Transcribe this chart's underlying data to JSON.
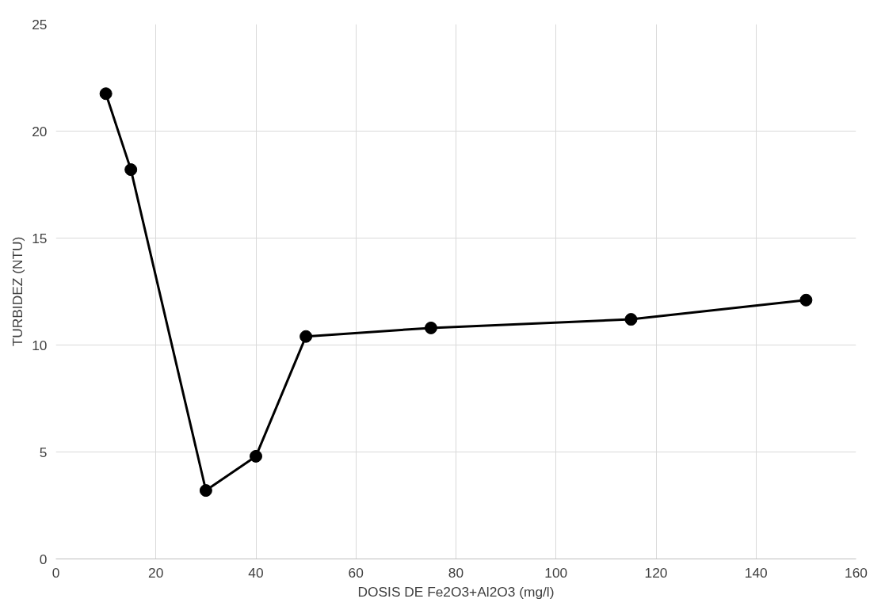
{
  "chart_data": {
    "type": "line",
    "xlabel": "DOSIS DE Fe2O3+Al2O3 (mg/l)",
    "ylabel": "TURBIDEZ (NTU)",
    "x": [
      10,
      15,
      30,
      40,
      50,
      75,
      115,
      150
    ],
    "series": [
      {
        "color": "#000000",
        "values": [
          21.75,
          18.2,
          3.2,
          4.8,
          10.4,
          10.8,
          11.2,
          12.1
        ]
      }
    ],
    "xlim": [
      0,
      160
    ],
    "xticks": [
      0,
      20,
      40,
      60,
      80,
      100,
      120,
      140,
      160
    ],
    "ylim": [
      0,
      25
    ],
    "yticks": [
      0,
      5,
      10,
      15,
      20,
      25
    ],
    "grid": true,
    "marker": "circle",
    "line_style": "solid"
  }
}
